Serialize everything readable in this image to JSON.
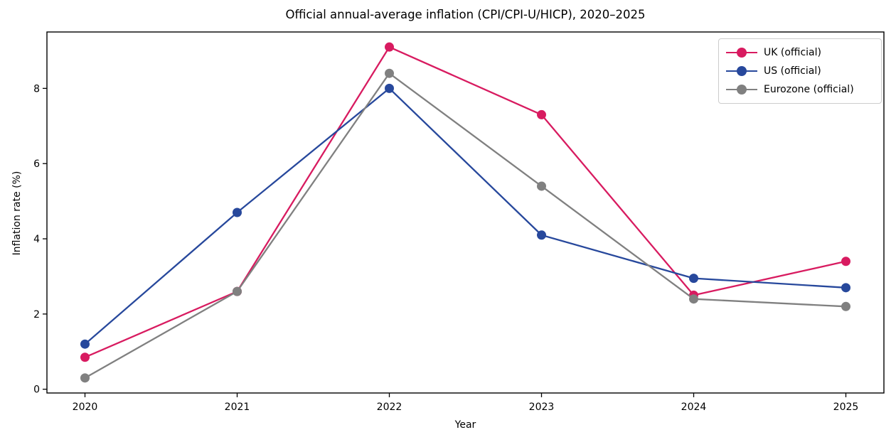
{
  "title": "Official annual-average inflation (CPI/CPI-U/HICP), 2020–2025",
  "chart_data": {
    "type": "line",
    "categories": [
      "2020",
      "2021",
      "2022",
      "2023",
      "2024",
      "2025"
    ],
    "series": [
      {
        "name": "UK (official)",
        "color": "#d81b60",
        "values": [
          0.85,
          2.6,
          9.1,
          7.3,
          2.5,
          3.4
        ]
      },
      {
        "name": "US (official)",
        "color": "#27489c",
        "values": [
          1.2,
          4.7,
          8.0,
          4.1,
          2.95,
          2.7
        ]
      },
      {
        "name": "Eurozone (official)",
        "color": "#808080",
        "values": [
          0.3,
          2.6,
          8.4,
          5.4,
          2.4,
          2.2
        ]
      }
    ],
    "title": "Official annual-average inflation (CPI/CPI-U/HICP), 2020–2025",
    "xlabel": "Year",
    "ylabel": "Inflation rate (%)",
    "yticks": [
      0,
      2,
      4,
      6,
      8
    ],
    "ylim": [
      -0.1,
      9.5
    ],
    "xlim": [
      -0.25,
      5.25
    ],
    "legend_position": "upper right",
    "grid": false,
    "axis_color": "#000000",
    "legend_border_color": "#cccccc"
  }
}
